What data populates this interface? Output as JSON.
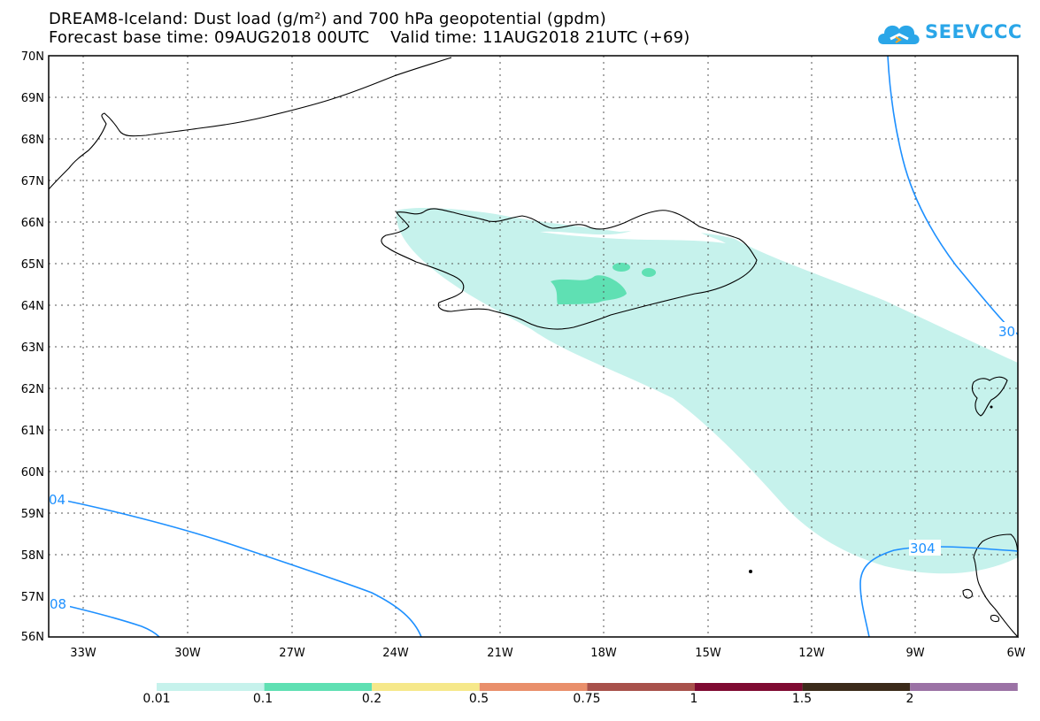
{
  "title": {
    "line1": "DREAM8-Iceland: Dust load (g/m²) and 700 hPa geopotential (gpdm)",
    "line2": "Forecast base time: 09AUG2018 00UTC    Valid time: 11AUG2018 21UTC (+69)"
  },
  "logo": {
    "text": "SEEVCCC",
    "icon": "cloud-icon",
    "color": "#2aa6e8"
  },
  "axes": {
    "lat_labels": [
      "70N",
      "69N",
      "68N",
      "67N",
      "66N",
      "65N",
      "64N",
      "63N",
      "62N",
      "61N",
      "60N",
      "59N",
      "58N",
      "57N",
      "56N"
    ],
    "lon_labels": [
      "33W",
      "30W",
      "27W",
      "24W",
      "21W",
      "18W",
      "15W",
      "12W",
      "9W",
      "6W"
    ]
  },
  "contours": {
    "color": "#1e90ff",
    "labels": [
      "30",
      "04",
      "08",
      "304"
    ]
  },
  "colorbar": {
    "colors": [
      "#c6f2ec",
      "#5fe0b3",
      "#f6e88a",
      "#e98f6b",
      "#a8514b",
      "#7f0a32",
      "#3b2b1a",
      "#9b72a5"
    ],
    "labels": [
      "0.01",
      "0.1",
      "0.2",
      "0.5",
      "0.75",
      "1",
      "1.5",
      "2"
    ]
  }
}
